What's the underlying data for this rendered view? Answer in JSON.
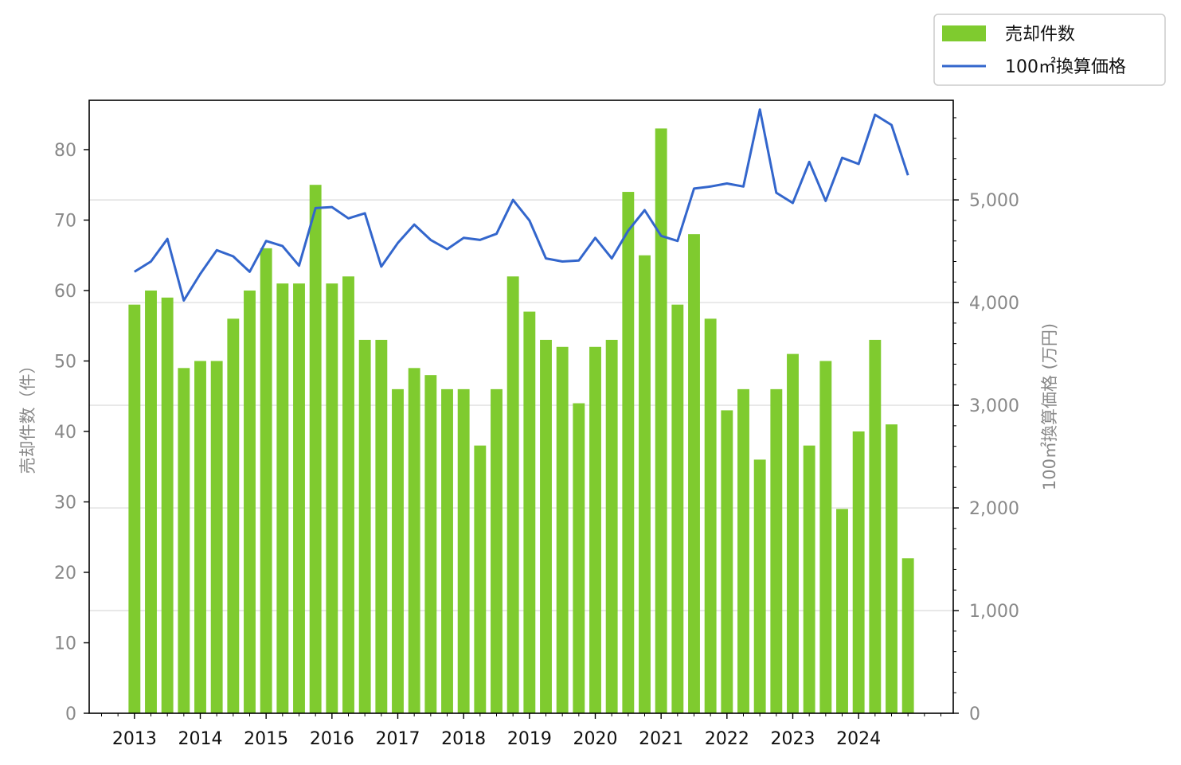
{
  "chart_data": {
    "type": "bar+line",
    "x_ticks": [
      "2013",
      "2014",
      "2015",
      "2016",
      "2017",
      "2018",
      "2019",
      "2020",
      "2021",
      "2022",
      "2023",
      "2024"
    ],
    "periods_per_year": 4,
    "start_year": 2013,
    "bars": {
      "name": "売却件数",
      "axis": "left",
      "color": "#7fcb2f",
      "values": [
        58,
        60,
        59,
        49,
        50,
        50,
        56,
        60,
        66,
        61,
        61,
        75,
        61,
        62,
        53,
        53,
        46,
        49,
        48,
        46,
        46,
        38,
        46,
        62,
        57,
        53,
        52,
        44,
        52,
        53,
        74,
        65,
        83,
        58,
        68,
        56,
        43,
        46,
        36,
        46,
        51,
        38,
        50,
        29,
        40,
        53,
        41,
        22
      ]
    },
    "line": {
      "name": "100㎡換算価格",
      "axis": "right",
      "color": "#3366cc",
      "values": [
        4300,
        4400,
        4620,
        4020,
        4280,
        4510,
        4450,
        4300,
        4600,
        4550,
        4360,
        4920,
        4930,
        4820,
        4870,
        4350,
        4580,
        4760,
        4610,
        4520,
        4630,
        4610,
        4670,
        5000,
        4800,
        4430,
        4400,
        4410,
        4630,
        4430,
        4700,
        4900,
        4650,
        4600,
        5110,
        5130,
        5160,
        5130,
        5880,
        5070,
        4970,
        5370,
        4990,
        5410,
        5350,
        5830,
        5730,
        5240
      ]
    },
    "left_axis": {
      "label": "売却件数（件）",
      "ylim": [
        0,
        87
      ],
      "ticks": [
        "0",
        "10",
        "20",
        "30",
        "40",
        "50",
        "60",
        "70",
        "80"
      ]
    },
    "right_axis": {
      "label": "100㎡換算価格 (万円)",
      "ylim": [
        0,
        5970
      ],
      "ticks": [
        "0",
        "1,000",
        "2,000",
        "3,000",
        "4,000",
        "5,000"
      ]
    },
    "grid": "horizontal, right axis major ticks",
    "legend_position": "top-right, outside plot"
  },
  "legend": {
    "bar_label": "売却件数",
    "line_label": "100㎡換算価格"
  }
}
